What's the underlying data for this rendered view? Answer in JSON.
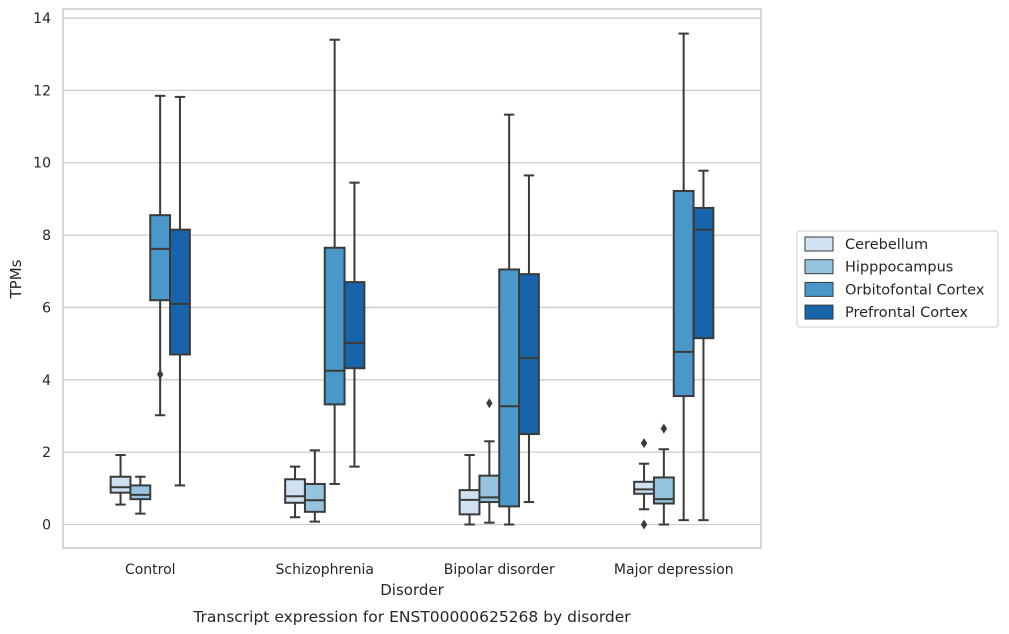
{
  "chart_data": {
    "type": "box",
    "title": "",
    "caption": "Transcript expression for ENST00000625268 by disorder",
    "xlabel": "Disorder",
    "ylabel": "TPMs",
    "ylim": [
      -0.65,
      14.25
    ],
    "yticks": [
      0,
      2,
      4,
      6,
      8,
      10,
      12,
      14
    ],
    "grid": true,
    "legend_position": "right",
    "categories": [
      "Control",
      "Schizophrenia",
      "Bipolar disorder",
      "Major depression"
    ],
    "series": [
      {
        "name": "Cerebellum",
        "color": "#d0e1f2",
        "boxes": [
          {
            "whislo": 0.55,
            "q1": 0.88,
            "med": 1.03,
            "q3": 1.32,
            "whishi": 1.92,
            "fliers": []
          },
          {
            "whislo": 0.2,
            "q1": 0.6,
            "med": 0.78,
            "q3": 1.25,
            "whishi": 1.6,
            "fliers": []
          },
          {
            "whislo": 0.0,
            "q1": 0.28,
            "med": 0.68,
            "q3": 0.95,
            "whishi": 1.92,
            "fliers": []
          },
          {
            "whislo": 0.42,
            "q1": 0.85,
            "med": 0.97,
            "q3": 1.18,
            "whishi": 1.68,
            "fliers": [
              2.25,
              0.0
            ]
          }
        ]
      },
      {
        "name": "Hipppocampus",
        "color": "#94c4df",
        "boxes": [
          {
            "whislo": 0.3,
            "q1": 0.7,
            "med": 0.82,
            "q3": 1.08,
            "whishi": 1.32,
            "fliers": []
          },
          {
            "whislo": 0.08,
            "q1": 0.35,
            "med": 0.67,
            "q3": 1.12,
            "whishi": 2.05,
            "fliers": []
          },
          {
            "whislo": 0.05,
            "q1": 0.62,
            "med": 0.75,
            "q3": 1.35,
            "whishi": 2.3,
            "fliers": [
              3.35
            ]
          },
          {
            "whislo": 0.0,
            "q1": 0.58,
            "med": 0.7,
            "q3": 1.3,
            "whishi": 2.08,
            "fliers": [
              2.65
            ]
          }
        ]
      },
      {
        "name": "Orbitofontal Cortex",
        "color": "#4a98c9",
        "boxes": [
          {
            "whislo": 3.02,
            "q1": 6.2,
            "med": 7.62,
            "q3": 8.55,
            "whishi": 11.85,
            "fliers": [
              4.15
            ]
          },
          {
            "whislo": 1.12,
            "q1": 3.32,
            "med": 4.25,
            "q3": 7.65,
            "whishi": 13.4,
            "fliers": []
          },
          {
            "whislo": 0.0,
            "q1": 0.5,
            "med": 3.27,
            "q3": 7.05,
            "whishi": 11.33,
            "fliers": []
          },
          {
            "whislo": 0.12,
            "q1": 3.55,
            "med": 4.77,
            "q3": 9.22,
            "whishi": 13.57,
            "fliers": []
          }
        ]
      },
      {
        "name": "Prefrontal Cortex",
        "color": "#1764ab",
        "boxes": [
          {
            "whislo": 1.08,
            "q1": 4.7,
            "med": 6.1,
            "q3": 8.15,
            "whishi": 11.82,
            "fliers": []
          },
          {
            "whislo": 1.6,
            "q1": 4.32,
            "med": 5.02,
            "q3": 6.7,
            "whishi": 9.45,
            "fliers": []
          },
          {
            "whislo": 0.62,
            "q1": 2.5,
            "med": 4.6,
            "q3": 6.92,
            "whishi": 9.65,
            "fliers": []
          },
          {
            "whislo": 0.12,
            "q1": 5.15,
            "med": 8.15,
            "q3": 8.75,
            "whishi": 9.78,
            "fliers": []
          }
        ]
      }
    ]
  }
}
